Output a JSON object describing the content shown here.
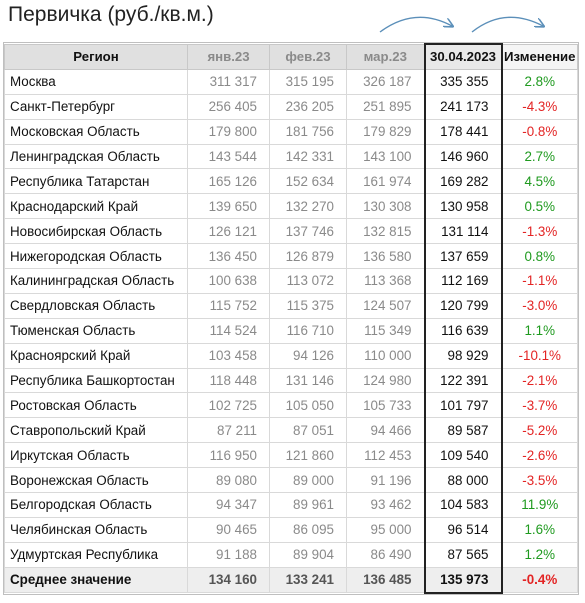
{
  "title": "Первичка (руб./кв.м.)",
  "colors": {
    "positive": "#1f9a1f",
    "negative": "#e32424",
    "arrow": "#5b8fb9"
  },
  "headers": [
    "Регион",
    "янв.23",
    "фев.23",
    "мар.23",
    "30.04.2023",
    "Изменение"
  ],
  "rows": [
    {
      "region": "Москва",
      "jan": "311 317",
      "feb": "315 195",
      "mar": "326 187",
      "cur": "335 355",
      "chg": "2.8%"
    },
    {
      "region": "Санкт-Петербург",
      "jan": "256 405",
      "feb": "236 205",
      "mar": "251 895",
      "cur": "241 173",
      "chg": "-4.3%"
    },
    {
      "region": "Московская Область",
      "jan": "179 800",
      "feb": "181 756",
      "mar": "179 829",
      "cur": "178 441",
      "chg": "-0.8%"
    },
    {
      "region": "Ленинградская Область",
      "jan": "143 544",
      "feb": "142 331",
      "mar": "143 100",
      "cur": "146 960",
      "chg": "2.7%"
    },
    {
      "region": "Республика Татарстан",
      "jan": "165 126",
      "feb": "152 634",
      "mar": "161 974",
      "cur": "169 282",
      "chg": "4.5%"
    },
    {
      "region": "Краснодарский Край",
      "jan": "139 650",
      "feb": "132 270",
      "mar": "130 308",
      "cur": "130 958",
      "chg": "0.5%"
    },
    {
      "region": "Новосибирская Область",
      "jan": "126 121",
      "feb": "137 746",
      "mar": "132 815",
      "cur": "131 114",
      "chg": "-1.3%"
    },
    {
      "region": "Нижегородская Область",
      "jan": "136 450",
      "feb": "126 879",
      "mar": "136 580",
      "cur": "137 659",
      "chg": "0.8%"
    },
    {
      "region": "Калининградская Область",
      "jan": "100 638",
      "feb": "113 072",
      "mar": "113 368",
      "cur": "112 169",
      "chg": "-1.1%"
    },
    {
      "region": "Свердловская Область",
      "jan": "115 752",
      "feb": "115 375",
      "mar": "124 507",
      "cur": "120 799",
      "chg": "-3.0%"
    },
    {
      "region": "Тюменская Область",
      "jan": "114 524",
      "feb": "116 710",
      "mar": "115 349",
      "cur": "116 639",
      "chg": "1.1%"
    },
    {
      "region": "Красноярский Край",
      "jan": "103 458",
      "feb": "94 126",
      "mar": "110 000",
      "cur": "98 929",
      "chg": "-10.1%"
    },
    {
      "region": "Республика Башкортостан",
      "jan": "118 448",
      "feb": "131 146",
      "mar": "124 980",
      "cur": "122 391",
      "chg": "-2.1%"
    },
    {
      "region": "Ростовская Область",
      "jan": "102 725",
      "feb": "105 050",
      "mar": "105 733",
      "cur": "101 797",
      "chg": "-3.7%"
    },
    {
      "region": "Ставропольский Край",
      "jan": "87 211",
      "feb": "87 051",
      "mar": "94 466",
      "cur": "89 587",
      "chg": "-5.2%"
    },
    {
      "region": "Иркутская Область",
      "jan": "116 950",
      "feb": "121 860",
      "mar": "112 453",
      "cur": "109 540",
      "chg": "-2.6%"
    },
    {
      "region": "Воронежская Область",
      "jan": "89 080",
      "feb": "89 000",
      "mar": "91 196",
      "cur": "88 000",
      "chg": "-3.5%"
    },
    {
      "region": "Белгородская Область",
      "jan": "94 347",
      "feb": "89 961",
      "mar": "93 462",
      "cur": "104 583",
      "chg": "11.9%"
    },
    {
      "region": "Челябинская Область",
      "jan": "90 465",
      "feb": "86 095",
      "mar": "95 000",
      "cur": "96 514",
      "chg": "1.6%"
    },
    {
      "region": "Удмуртская Республика",
      "jan": "91 188",
      "feb": "89 904",
      "mar": "86 490",
      "cur": "87 565",
      "chg": "1.2%"
    }
  ],
  "average": {
    "region": "Среднее значение",
    "jan": "134 160",
    "feb": "133 241",
    "mar": "136 485",
    "cur": "135 973",
    "chg": "-0.4%"
  }
}
